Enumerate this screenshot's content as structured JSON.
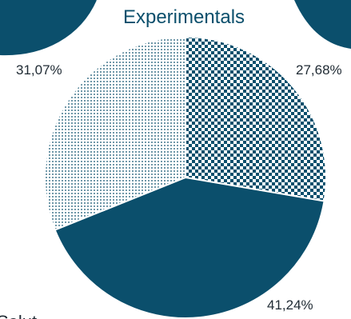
{
  "chart_data": {
    "type": "pie",
    "title": "Experimentals",
    "slices": [
      {
        "label": "27,68%",
        "value": 27.68,
        "pattern": "checkerboard"
      },
      {
        "label": "41,24%",
        "value": 41.24,
        "pattern": "solid"
      },
      {
        "label": "31,07%",
        "value": 31.07,
        "pattern": "dotted"
      }
    ],
    "start_angle_deg": 0,
    "direction": "clockwise",
    "colors": {
      "primary": "#0b4f6c",
      "background": "#ffffff",
      "edge": "#ffffff"
    }
  },
  "fragments": {
    "bottom_left_text": "Salut"
  }
}
